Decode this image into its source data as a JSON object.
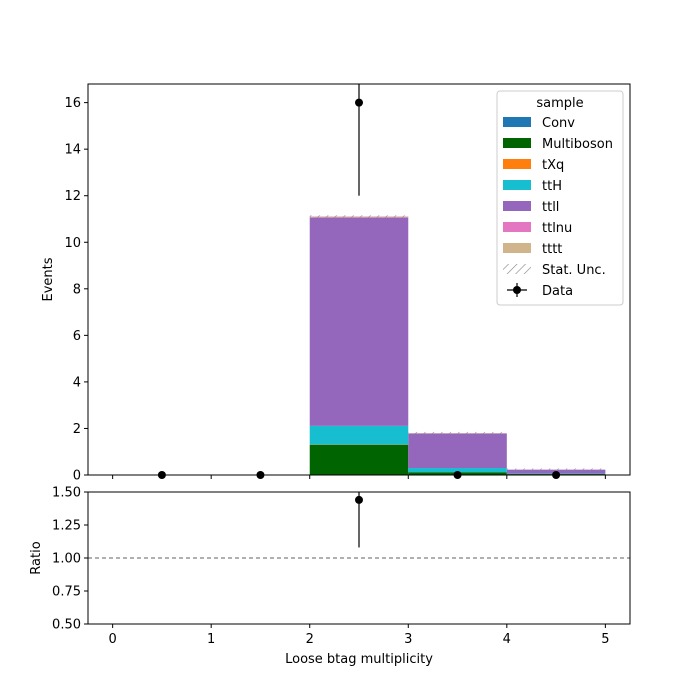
{
  "chart_data": [
    {
      "type": "bar",
      "stacked": true,
      "bin_edges": [
        0,
        1,
        2,
        3,
        4,
        5
      ],
      "xlabel": "",
      "ylabel": "Events",
      "ylim": [
        0,
        16.8
      ],
      "yticks": [
        0,
        2,
        4,
        6,
        8,
        10,
        12,
        14,
        16
      ],
      "xticks": [
        0,
        1,
        2,
        3,
        4,
        5
      ],
      "xtick_labels_shown": false,
      "series": [
        {
          "name": "Conv",
          "color": "#1f77b4",
          "values": [
            0,
            0,
            0,
            0,
            0
          ]
        },
        {
          "name": "Multiboson",
          "color": "#006400",
          "values": [
            0,
            0,
            1.3,
            0.12,
            0.04
          ]
        },
        {
          "name": "tXq",
          "color": "#ff7f0e",
          "values": [
            0,
            0,
            0.01,
            0,
            0
          ]
        },
        {
          "name": "ttH",
          "color": "#17becf",
          "values": [
            0,
            0,
            0.8,
            0.18,
            0.02
          ]
        },
        {
          "name": "ttll",
          "color": "#9467bd",
          "values": [
            0,
            0,
            8.95,
            1.48,
            0.17
          ]
        },
        {
          "name": "ttlnu",
          "color": "#e377c2",
          "values": [
            0,
            0,
            0.02,
            0.01,
            0
          ]
        },
        {
          "name": "tttt",
          "color": "#d2b48c",
          "values": [
            0,
            0,
            0.03,
            0.01,
            0
          ]
        }
      ],
      "data_points": {
        "name": "Data",
        "x": [
          0.5,
          1.5,
          2.5,
          3.5,
          4.5
        ],
        "y": [
          0,
          0,
          16,
          0,
          0
        ],
        "yerr": [
          0,
          0,
          4,
          0,
          0
        ]
      },
      "stat_unc_label": "Stat. Unc.",
      "legend": {
        "title": "sample",
        "entries": [
          "Conv",
          "Multiboson",
          "tXq",
          "ttH",
          "ttll",
          "ttlnu",
          "tttt",
          "Stat. Unc.",
          "Data"
        ],
        "placement": "top-right"
      }
    },
    {
      "type": "scatter",
      "xlabel": "Loose btag multiplicity",
      "ylabel": "Ratio",
      "ylim": [
        0.5,
        1.5
      ],
      "yticks": [
        "0.50",
        "0.75",
        "1.00",
        "1.25",
        "1.50"
      ],
      "xticks": [
        "0",
        "1",
        "2",
        "3",
        "4",
        "5"
      ],
      "reference_line": 1.0,
      "points": {
        "x": [
          2.5
        ],
        "y": [
          1.44
        ],
        "yerr_low": [
          0.36
        ],
        "yerr_high": [
          0.36
        ]
      }
    }
  ]
}
